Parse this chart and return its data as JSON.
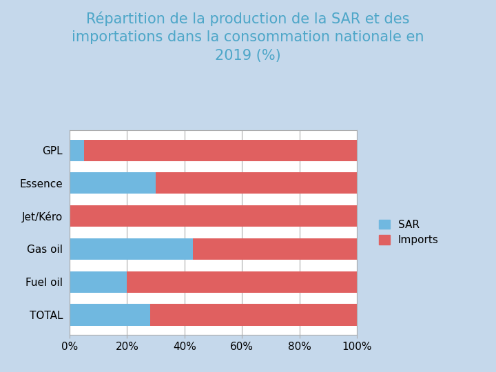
{
  "title": "Répartition de la production de la SAR et des\nimportations dans la consommation nationale en\n2019 (%)",
  "categories": [
    "GPL",
    "Essence",
    "Jet/Kéro",
    "Gas oil",
    "Fuel oil",
    "TOTAL"
  ],
  "sar_values": [
    5,
    30,
    0,
    43,
    20,
    28
  ],
  "imports_values": [
    95,
    70,
    100,
    57,
    80,
    72
  ],
  "sar_color": "#70B8E0",
  "imports_color": "#E06060",
  "sar_label": "SAR",
  "imports_label": "Imports",
  "background_color": "#FFFFFF",
  "outer_bg_color": "#C5D8EB",
  "title_color": "#4DA6C8",
  "tick_labels": [
    "0%",
    "20%",
    "40%",
    "60%",
    "80%",
    "100%"
  ],
  "tick_values": [
    0,
    20,
    40,
    60,
    80,
    100
  ],
  "xlim": [
    0,
    100
  ],
  "title_fontsize": 15,
  "label_fontsize": 11,
  "legend_fontsize": 11
}
